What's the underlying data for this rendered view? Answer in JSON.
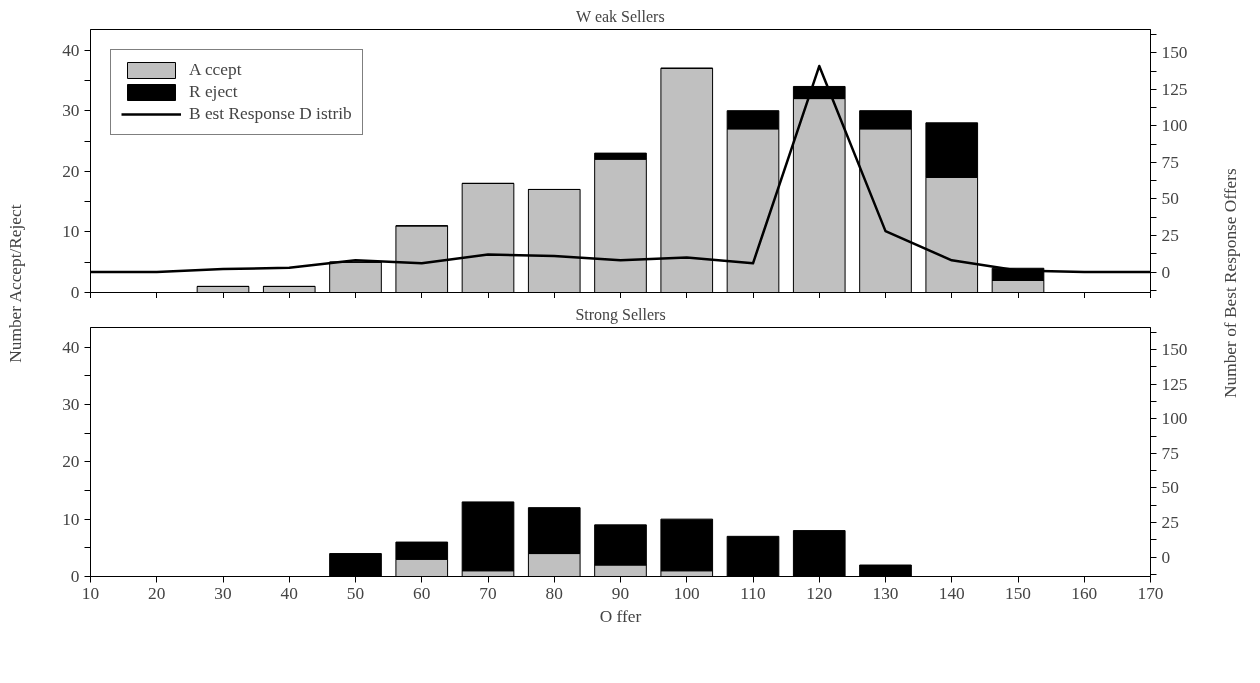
{
  "chart_data": [
    {
      "type": "bar",
      "stacked": true,
      "title": "W eak Sellers",
      "x": [
        30,
        40,
        50,
        60,
        70,
        80,
        90,
        100,
        110,
        120,
        130,
        140,
        150
      ],
      "series": [
        {
          "name": "A ccept",
          "color": "#c0c0c0",
          "values": [
            1,
            1,
            5,
            11,
            18,
            17,
            22,
            37,
            27,
            32,
            27,
            19,
            2
          ]
        },
        {
          "name": "R eject",
          "color": "#000000",
          "values": [
            0,
            0,
            0,
            0,
            0,
            0,
            1,
            0,
            3,
            2,
            3,
            9,
            2
          ]
        },
        {
          "name": "B est Response D istrib",
          "type": "line",
          "axis": "y2",
          "color": "#000000",
          "x": [
            10,
            20,
            30,
            40,
            50,
            60,
            70,
            80,
            90,
            100,
            110,
            120,
            130,
            140,
            150,
            160,
            170
          ],
          "values": [
            0,
            0,
            2,
            3,
            8,
            6,
            12,
            11,
            8,
            10,
            6,
            141,
            28,
            8,
            1,
            0,
            0
          ]
        }
      ],
      "xlim": [
        10,
        170
      ],
      "xticks": [
        10,
        20,
        30,
        40,
        50,
        60,
        70,
        80,
        90,
        100,
        110,
        120,
        130,
        140,
        150,
        160,
        170
      ],
      "ylim": [
        0,
        43.4
      ],
      "yticks": [
        0,
        {
          "value": 5,
          "label": null
        },
        10,
        {
          "value": 15,
          "label": null
        },
        20,
        {
          "value": 25,
          "label": null
        },
        30,
        {
          "value": 35,
          "label": null
        },
        40
      ],
      "y2lim": [
        -14,
        166
      ],
      "y2ticks": [
        {
          "value": -12.5,
          "label": null
        },
        0,
        {
          "value": 12.5,
          "label": null
        },
        25,
        {
          "value": 37.5,
          "label": null
        },
        50,
        {
          "value": 62.5,
          "label": null
        },
        75,
        {
          "value": 87.5,
          "label": null
        },
        100,
        {
          "value": 112.5,
          "label": null
        },
        125,
        {
          "value": 137.5,
          "label": null
        },
        150,
        {
          "value": 162.5,
          "label": null
        }
      ],
      "tick_labels": "y",
      "legend": "top left",
      "grid": false
    },
    {
      "type": "bar",
      "stacked": true,
      "title": "Strong Sellers",
      "x": [
        50,
        60,
        70,
        80,
        90,
        100,
        110,
        120,
        130
      ],
      "series": [
        {
          "color": "#c0c0c0",
          "values": [
            0,
            3,
            1,
            4,
            2,
            1,
            0,
            0,
            0
          ]
        },
        {
          "color": "#000000",
          "values": [
            4,
            3,
            12,
            8,
            7,
            9,
            7,
            8,
            2
          ]
        }
      ],
      "xlabel": "O ffer",
      "ylabel": "Number Accept/Reject",
      "y2label": "Number of Best Response Offers",
      "xlim": [
        10,
        170
      ],
      "xticks": [
        10,
        20,
        30,
        40,
        50,
        60,
        70,
        80,
        90,
        100,
        110,
        120,
        130,
        140,
        150,
        160,
        170
      ],
      "ylim": [
        0,
        43.4
      ],
      "yticks": [
        0,
        {
          "value": 5,
          "label": null
        },
        10,
        {
          "value": 15,
          "label": null
        },
        20,
        {
          "value": 25,
          "label": null
        },
        30,
        {
          "value": 35,
          "label": null
        },
        40
      ],
      "y2lim": [
        -14,
        166
      ],
      "y2ticks": [
        {
          "value": -12.5,
          "label": null
        },
        0,
        {
          "value": 12.5,
          "label": null
        },
        25,
        {
          "value": 37.5,
          "label": null
        },
        50,
        {
          "value": 62.5,
          "label": null
        },
        75,
        {
          "value": 87.5,
          "label": null
        },
        100,
        {
          "value": 112.5,
          "label": null
        },
        125,
        {
          "value": 137.5,
          "label": null
        },
        150,
        {
          "value": 162.5,
          "label": null
        }
      ],
      "grid": false
    }
  ]
}
